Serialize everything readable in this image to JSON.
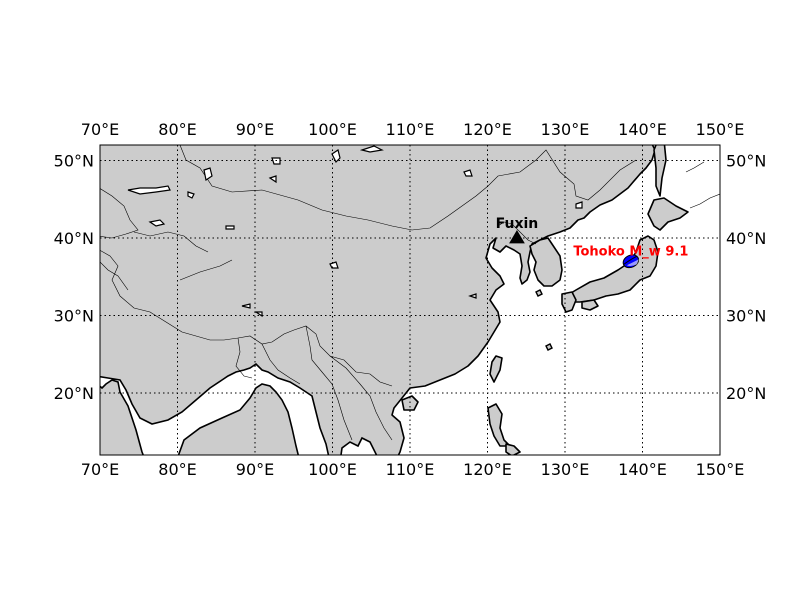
{
  "map": {
    "projection": "equirectangular",
    "lon_range": [
      70,
      150
    ],
    "lat_range": [
      12,
      52
    ],
    "land_color": "#cccccc",
    "water_color": "#ffffff",
    "grid": true,
    "lon_ticks": [
      {
        "value": 70,
        "label": "70°E"
      },
      {
        "value": 80,
        "label": "80°E"
      },
      {
        "value": 90,
        "label": "90°E"
      },
      {
        "value": 100,
        "label": "100°E"
      },
      {
        "value": 110,
        "label": "110°E"
      },
      {
        "value": 120,
        "label": "120°E"
      },
      {
        "value": 130,
        "label": "130°E"
      },
      {
        "value": 140,
        "label": "140°E"
      },
      {
        "value": 150,
        "label": "150°E"
      }
    ],
    "lat_ticks": [
      {
        "value": 20,
        "label": "20°N"
      },
      {
        "value": 30,
        "label": "30°N"
      },
      {
        "value": 40,
        "label": "40°N"
      },
      {
        "value": 50,
        "label": "50°N"
      }
    ],
    "station": {
      "name": "Fuxin",
      "lon": 123.8,
      "lat": 40.0,
      "marker": "triangle",
      "color": "#000000"
    },
    "event": {
      "name": "Tohoko M_w 9.1",
      "lon": 138.5,
      "lat": 37.0,
      "marker": "beachball",
      "color": "#0000ff",
      "label_color": "#ff0000"
    }
  }
}
